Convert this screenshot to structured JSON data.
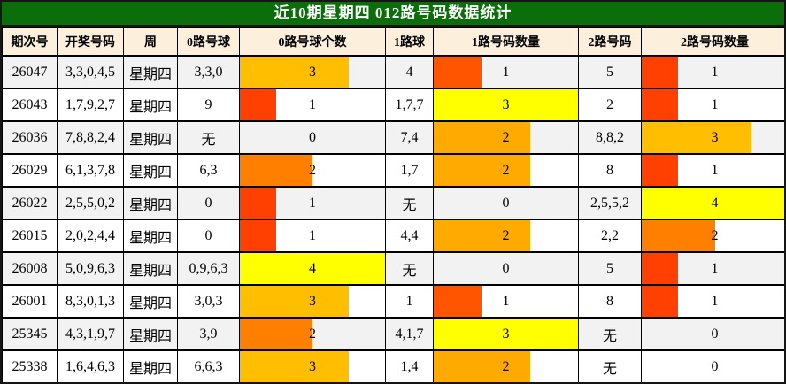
{
  "title": "近10期星期四 012路号码数据统计",
  "colors": {
    "title_bg": "#0B6E0B",
    "title_text": "#FFFFFF",
    "header_bg": "#FCEFDB",
    "row_bg": "#FFFFFF",
    "row_alt_bg": "#F2F2F2",
    "border": "#000000",
    "right_edge_line": "#FA5B2E",
    "bar_colors_observed": [
      "#FF4000",
      "#FF5500",
      "#FF8000",
      "#FFAA00",
      "#FFBF00",
      "#FFFF00"
    ],
    "bar_color_rule": "rgb(255, 255*count/column_max, 0)"
  },
  "chart_data": {
    "type": "table",
    "title": "近10期星期四 012路号码数据统计",
    "columns": [
      "期次号",
      "开奖号码",
      "周",
      "0路号球",
      "0路号球个数",
      "1路球",
      "1路号码数量",
      "2路号码",
      "2路号码数量"
    ],
    "bar_max": {
      "r0": 4,
      "r1": 3,
      "r2": 4
    },
    "rows": [
      {
        "period": "26047",
        "numbers": "3,3,0,4,5",
        "week": "星期四",
        "r0_balls": "3,3,0",
        "r0_count": 3,
        "r1_balls": "4",
        "r1_count": 1,
        "r2_balls": "5",
        "r2_count": 1
      },
      {
        "period": "26043",
        "numbers": "1,7,9,2,7",
        "week": "星期四",
        "r0_balls": "9",
        "r0_count": 1,
        "r1_balls": "1,7,7",
        "r1_count": 3,
        "r2_balls": "2",
        "r2_count": 1
      },
      {
        "period": "26036",
        "numbers": "7,8,8,2,4",
        "week": "星期四",
        "r0_balls": "无",
        "r0_count": 0,
        "r1_balls": "7,4",
        "r1_count": 2,
        "r2_balls": "8,8,2",
        "r2_count": 3
      },
      {
        "period": "26029",
        "numbers": "6,1,3,7,8",
        "week": "星期四",
        "r0_balls": "6,3",
        "r0_count": 2,
        "r1_balls": "1,7",
        "r1_count": 2,
        "r2_balls": "8",
        "r2_count": 1
      },
      {
        "period": "26022",
        "numbers": "2,5,5,0,2",
        "week": "星期四",
        "r0_balls": "0",
        "r0_count": 1,
        "r1_balls": "无",
        "r1_count": 0,
        "r2_balls": "2,5,5,2",
        "r2_count": 4
      },
      {
        "period": "26015",
        "numbers": "2,0,2,4,4",
        "week": "星期四",
        "r0_balls": "0",
        "r0_count": 1,
        "r1_balls": "4,4",
        "r1_count": 2,
        "r2_balls": "2,2",
        "r2_count": 2
      },
      {
        "period": "26008",
        "numbers": "5,0,9,6,3",
        "week": "星期四",
        "r0_balls": "0,9,6,3",
        "r0_count": 4,
        "r1_balls": "无",
        "r1_count": 0,
        "r2_balls": "5",
        "r2_count": 1
      },
      {
        "period": "26001",
        "numbers": "8,3,0,1,3",
        "week": "星期四",
        "r0_balls": "3,0,3",
        "r0_count": 3,
        "r1_balls": "1",
        "r1_count": 1,
        "r2_balls": "8",
        "r2_count": 1
      },
      {
        "period": "25345",
        "numbers": "4,3,1,9,7",
        "week": "星期四",
        "r0_balls": "3,9",
        "r0_count": 2,
        "r1_balls": "4,1,7",
        "r1_count": 3,
        "r2_balls": "无",
        "r2_count": 0
      },
      {
        "period": "25338",
        "numbers": "1,6,4,6,3",
        "week": "星期四",
        "r0_balls": "6,6,3",
        "r0_count": 3,
        "r1_balls": "1,4",
        "r1_count": 2,
        "r2_balls": "无",
        "r2_count": 0
      }
    ]
  }
}
